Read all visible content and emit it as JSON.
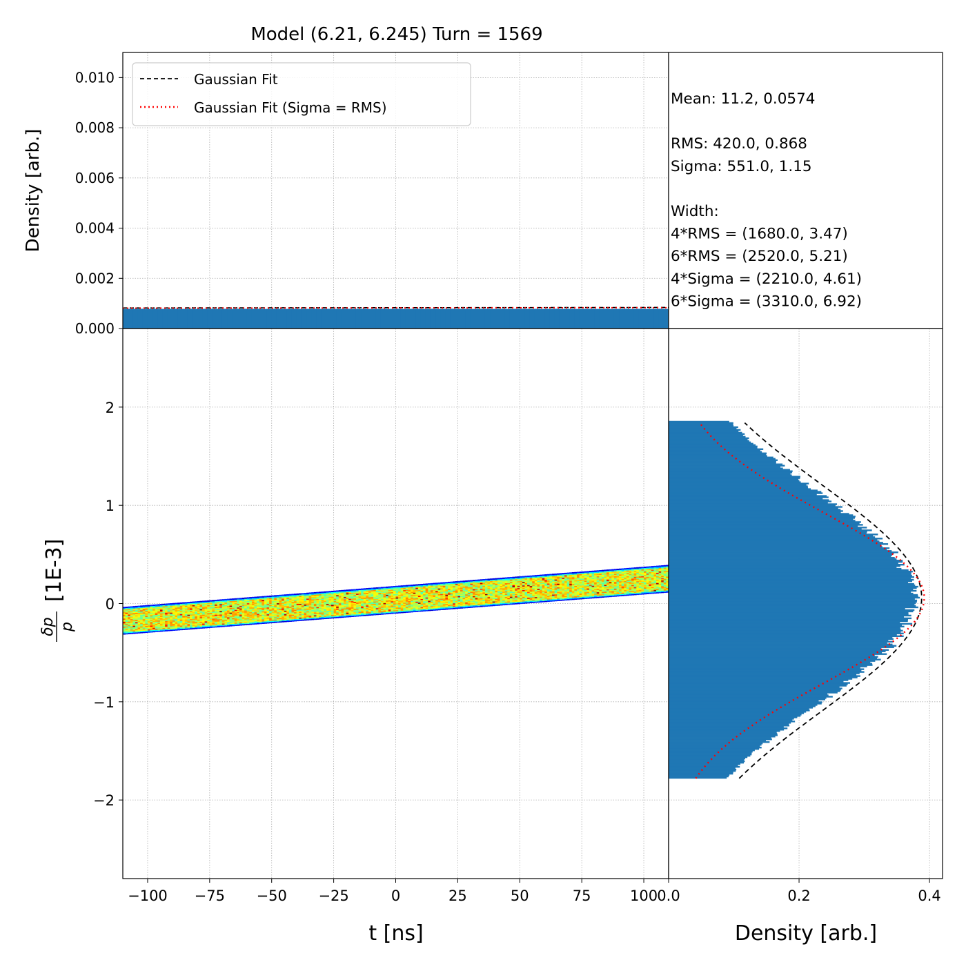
{
  "title": "Model (6.21, 6.245) Turn = 1569",
  "colors": {
    "histogram": "#1f77b4",
    "gaussian_fit": "#000000",
    "gaussian_fit_rms": "#ff0000",
    "grid": "#b0b0b0"
  },
  "stats_box": {
    "lines": [
      "Mean: 11.2, 0.0574",
      "",
      "RMS: 420.0, 0.868",
      "Sigma: 551.0, 1.15",
      "",
      "Width:",
      "4*RMS = (1680.0, 3.47)",
      "6*RMS = (2520.0, 5.21)",
      "4*Sigma = (2210.0, 4.61)",
      "6*Sigma = (3310.0, 6.92)"
    ]
  },
  "chart_data": [
    {
      "id": "top-histogram",
      "type": "bar",
      "ylabel": "Density [arb.]",
      "xlim": [
        -110,
        110
      ],
      "ylim": [
        0,
        0.011
      ],
      "yticks": [
        0.0,
        0.002,
        0.004,
        0.006,
        0.008,
        0.01
      ],
      "ytick_labels": [
        "0.000",
        "0.002",
        "0.004",
        "0.006",
        "0.008",
        "0.010"
      ],
      "histogram_level": 0.00078,
      "fit_level": 0.00082,
      "fit_rms_level": 0.00081,
      "legend": {
        "placement": "upper-left",
        "entries": [
          {
            "label": "Gaussian Fit",
            "style": "dashed",
            "color": "#000000"
          },
          {
            "label": "Gaussian Fit (Sigma = RMS)",
            "style": "dotted",
            "color": "#ff0000"
          }
        ]
      },
      "grid": true
    },
    {
      "id": "phase-space",
      "type": "heatmap",
      "xlabel": "t [ns]",
      "ylabel": "δp/p  [1E-3]",
      "xlim": [
        -110,
        110
      ],
      "ylim": [
        -2.8,
        2.8
      ],
      "xticks": [
        -100,
        -75,
        -50,
        -25,
        0,
        25,
        50,
        75,
        100
      ],
      "xtick_labels": [
        "−100",
        "−75",
        "−50",
        "−25",
        "0",
        "25",
        "50",
        "75",
        "100"
      ],
      "yticks": [
        -2,
        -1,
        0,
        1,
        2
      ],
      "ytick_labels": [
        "−2",
        "−1",
        "0",
        "1",
        "2"
      ],
      "band": {
        "center_slope_per_ns": 0.00195,
        "center_offset": 0.04,
        "half_width": 0.14,
        "x_range": [
          -110,
          110
        ]
      },
      "colormap": "jet",
      "grid": true
    },
    {
      "id": "side-histogram",
      "type": "bar",
      "orientation": "horizontal",
      "xlabel": "Density [arb.]",
      "xlim": [
        0,
        0.42
      ],
      "ylim": [
        -2.8,
        2.8
      ],
      "xticks": [
        0.0,
        0.2,
        0.4
      ],
      "xtick_labels": [
        "0.0",
        "0.2",
        "0.4"
      ],
      "histogram": {
        "mean": 0.0574,
        "rms": 0.868,
        "y_range": [
          -1.78,
          1.86
        ],
        "peak": 0.375
      },
      "gaussian_fit": {
        "mean": 0.0574,
        "sigma": 1.15,
        "amplitude": 0.388,
        "y_range": [
          -1.78,
          1.84
        ]
      },
      "gaussian_fit_rms": {
        "mean": 0.0574,
        "sigma": 0.868,
        "amplitude": 0.392,
        "y_range": [
          -1.78,
          1.84
        ]
      },
      "grid": true
    }
  ]
}
